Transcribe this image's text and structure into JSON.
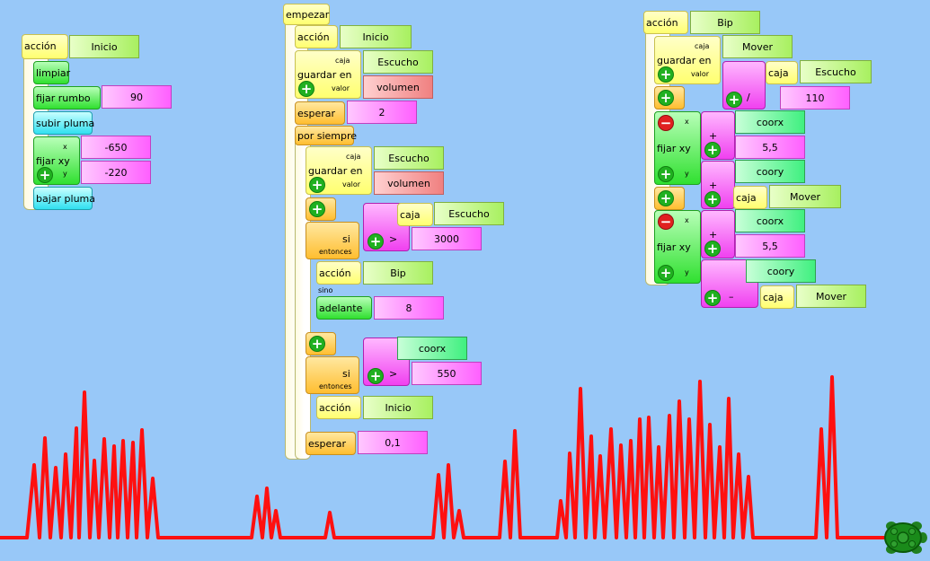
{
  "program1": {
    "accion": "acción",
    "name": "Inicio",
    "limpiar": "limpiar",
    "fijar_rumbo": "fijar rumbo",
    "rumbo": "90",
    "subir_pluma": "subir pluma",
    "fijar_xy": "fijar xy",
    "x_label": "x",
    "y_label": "y",
    "x": "-650",
    "y": "-220",
    "bajar_pluma": "bajar pluma"
  },
  "program2": {
    "empezar": "empezar",
    "accion": "acción",
    "accion_name": "Inicio",
    "guardar_en": "guardar en",
    "caja": "caja",
    "valor": "valor",
    "var1": "Escucho",
    "val1": "volumen",
    "esperar": "esperar",
    "wait1": "2",
    "por_siempre": "por siempre",
    "guardar_en2": "guardar en",
    "caja2": "caja",
    "valor2": "valor",
    "var2": "Escucho",
    "val2": "volumen",
    "si": "si",
    "entonces": "entonces",
    "sino": "sino",
    "caja3": "caja",
    "var3": "Escucho",
    "gt": ">",
    "thr1": "3000",
    "accion2": "acción",
    "bip": "Bip",
    "adelante": "adelante",
    "adv": "8",
    "coorx": "coorx",
    "gt2": ">",
    "thr2": "550",
    "si2": "si",
    "entonces2": "entonces",
    "accion3": "acción",
    "inicio2": "Inicio",
    "esperar2": "esperar",
    "wait2": "0,1"
  },
  "program3": {
    "accion": "acción",
    "name": "Bip",
    "guardar_en": "guardar en",
    "caja": "caja",
    "valor": "valor",
    "var1": "Mover",
    "caja_lbl": "caja",
    "var2": "Escucho",
    "div": "/",
    "divisor": "110",
    "fijar_xy": "fijar xy",
    "x": "x",
    "y": "y",
    "plus": "+",
    "coorx": "coorx",
    "dx": "5,5",
    "coory": "coory",
    "mover": "Mover",
    "fijar_xy2": "fijar xy",
    "x2": "x",
    "y2": "y",
    "plus2": "+",
    "coorx2": "coorx",
    "dx2": "5,5",
    "coory2": "coory",
    "minus": "–",
    "mover2": "Mover"
  },
  "drawing": {
    "line_color": "#ff1010",
    "turtle_color": "#208020",
    "baseline": 599,
    "peaks": [
      [
        30,
        599
      ],
      [
        38,
        518
      ],
      [
        44,
        599
      ],
      [
        50,
        488
      ],
      [
        56,
        599
      ],
      [
        62,
        521
      ],
      [
        68,
        599
      ],
      [
        73,
        506
      ],
      [
        79,
        599
      ],
      [
        85,
        477
      ],
      [
        88,
        599
      ],
      [
        94,
        437
      ],
      [
        100,
        599
      ],
      [
        105,
        513
      ],
      [
        110,
        599
      ],
      [
        116,
        489
      ],
      [
        122,
        599
      ],
      [
        127,
        497
      ],
      [
        131,
        599
      ],
      [
        137,
        491
      ],
      [
        142,
        599
      ],
      [
        148,
        493
      ],
      [
        152,
        599
      ],
      [
        158,
        479
      ],
      [
        164,
        599
      ],
      [
        170,
        533
      ],
      [
        176,
        599
      ],
      [
        280,
        599
      ],
      [
        286,
        553
      ],
      [
        292,
        599
      ],
      [
        297,
        544
      ],
      [
        302,
        599
      ],
      [
        307,
        569
      ],
      [
        312,
        599
      ],
      [
        362,
        599
      ],
      [
        367,
        571
      ],
      [
        372,
        599
      ],
      [
        482,
        599
      ],
      [
        488,
        529
      ],
      [
        494,
        599
      ],
      [
        499,
        518
      ],
      [
        505,
        599
      ],
      [
        511,
        569
      ],
      [
        516,
        599
      ],
      [
        556,
        599
      ],
      [
        562,
        514
      ],
      [
        568,
        599
      ],
      [
        573,
        480
      ],
      [
        579,
        599
      ],
      [
        620,
        599
      ],
      [
        624,
        558
      ],
      [
        630,
        599
      ],
      [
        634,
        505
      ],
      [
        640,
        599
      ],
      [
        646,
        433
      ],
      [
        652,
        599
      ],
      [
        658,
        486
      ],
      [
        662,
        599
      ],
      [
        668,
        508
      ],
      [
        673,
        599
      ],
      [
        680,
        478
      ],
      [
        686,
        599
      ],
      [
        691,
        496
      ],
      [
        697,
        599
      ],
      [
        702,
        491
      ],
      [
        707,
        599
      ],
      [
        712,
        467
      ],
      [
        717,
        599
      ],
      [
        722,
        465
      ],
      [
        728,
        599
      ],
      [
        733,
        498
      ],
      [
        738,
        599
      ],
      [
        745,
        463
      ],
      [
        750,
        599
      ],
      [
        756,
        447
      ],
      [
        762,
        599
      ],
      [
        767,
        467
      ],
      [
        773,
        599
      ],
      [
        779,
        425
      ],
      [
        785,
        599
      ],
      [
        790,
        473
      ],
      [
        795,
        599
      ],
      [
        801,
        498
      ],
      [
        806,
        599
      ],
      [
        811,
        444
      ],
      [
        816,
        599
      ],
      [
        822,
        506
      ],
      [
        827,
        599
      ],
      [
        833,
        531
      ],
      [
        838,
        599
      ],
      [
        908,
        599
      ],
      [
        914,
        478
      ],
      [
        920,
        599
      ],
      [
        926,
        420
      ],
      [
        932,
        599
      ],
      [
        1000,
        599
      ]
    ]
  }
}
